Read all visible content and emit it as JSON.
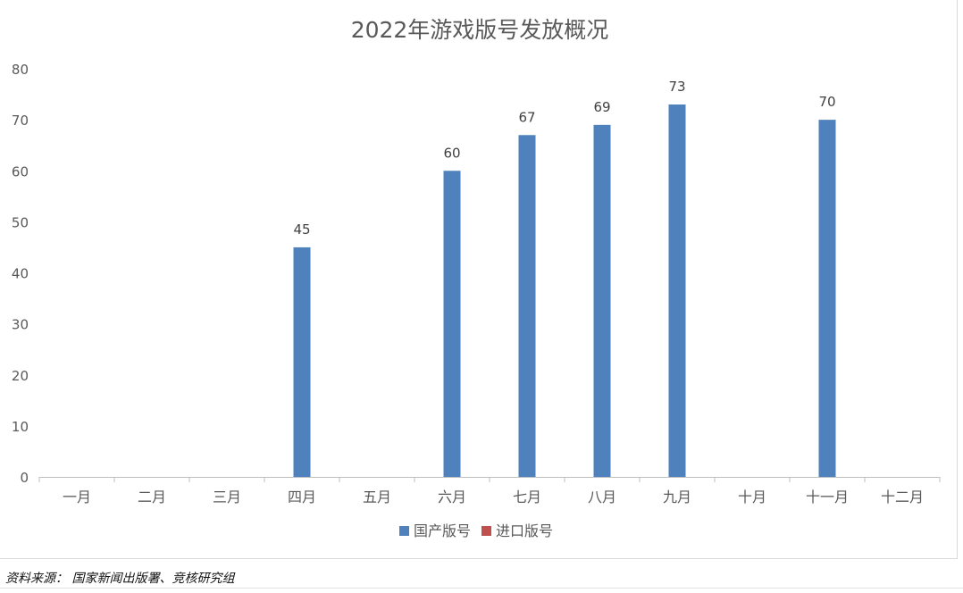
{
  "chart_data": {
    "type": "bar",
    "title": "2022年游戏版号发放概况",
    "categories": [
      "一月",
      "二月",
      "三月",
      "四月",
      "五月",
      "六月",
      "七月",
      "八月",
      "九月",
      "十月",
      "十一月",
      "十二月"
    ],
    "series": [
      {
        "name": "国产版号",
        "color": "#4f81bd",
        "values": [
          null,
          null,
          null,
          45,
          null,
          60,
          67,
          69,
          73,
          null,
          70,
          null
        ]
      },
      {
        "name": "进口版号",
        "color": "#c0504d",
        "values": [
          null,
          null,
          null,
          null,
          null,
          null,
          null,
          null,
          null,
          null,
          null,
          null
        ]
      }
    ],
    "ylim": [
      0,
      80
    ],
    "yticks": [
      0,
      10,
      20,
      30,
      40,
      50,
      60,
      70,
      80
    ],
    "grid": false,
    "legend_position": "bottom",
    "data_labels": true
  },
  "source_note": "资料来源： 国家新闻出版署、竞核研究组"
}
